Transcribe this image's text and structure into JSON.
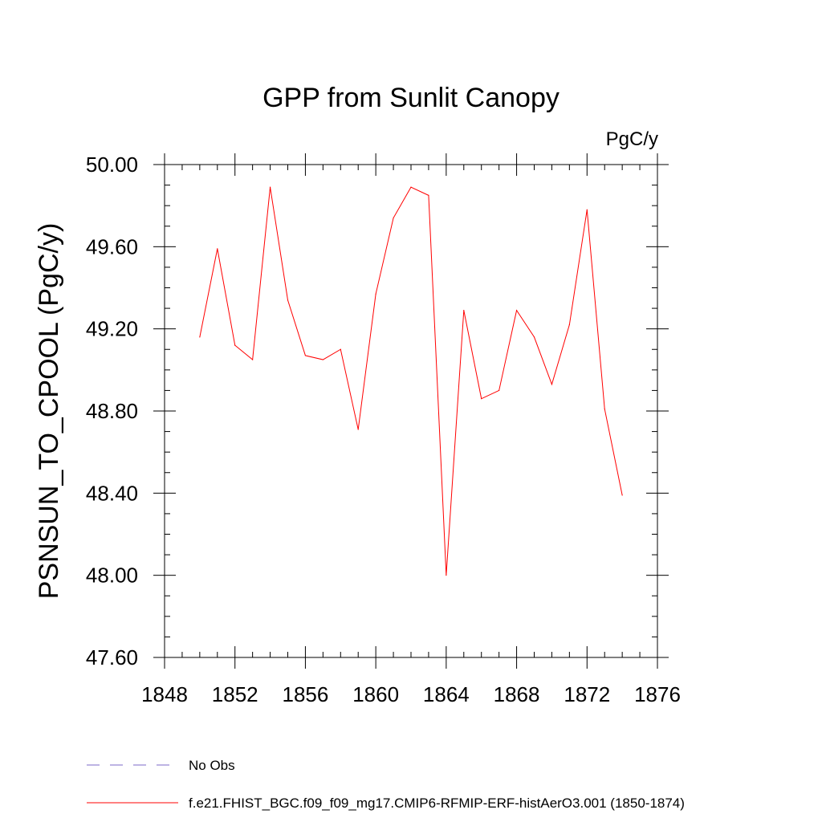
{
  "chart_data": {
    "type": "line",
    "title": "GPP from Sunlit Canopy",
    "units_label": "PgC/y",
    "ylabel": "PSNSUN_TO_CPOOL  (PgC/y)",
    "xlabel": "",
    "xlim": [
      1848,
      1876
    ],
    "ylim": [
      47.6,
      50.0
    ],
    "x_ticks": [
      1848,
      1852,
      1856,
      1860,
      1864,
      1868,
      1872,
      1876
    ],
    "x_tick_labels": [
      "1848",
      "1852",
      "1856",
      "1860",
      "1864",
      "1868",
      "1872",
      "1876"
    ],
    "y_ticks": [
      47.6,
      48.0,
      48.4,
      48.8,
      49.2,
      49.6,
      50.0
    ],
    "y_tick_labels": [
      "47.60",
      "48.00",
      "48.40",
      "48.80",
      "49.20",
      "49.60",
      "50.00"
    ],
    "grid": false,
    "legend_position": "bottom-left",
    "series": [
      {
        "name": "f.e21.FHIST_BGC.f09_f09_mg17.CMIP6-RFMIP-ERF-histAerO3.001 (1850-1874)",
        "color": "#ff0000",
        "style": "solid",
        "x": [
          1850,
          1851,
          1852,
          1853,
          1854,
          1855,
          1856,
          1857,
          1858,
          1859,
          1860,
          1861,
          1862,
          1863,
          1864,
          1865,
          1866,
          1867,
          1868,
          1869,
          1870,
          1871,
          1872,
          1873,
          1874
        ],
        "y": [
          49.16,
          49.59,
          49.12,
          49.05,
          49.89,
          49.34,
          49.07,
          49.05,
          49.1,
          48.71,
          49.37,
          49.74,
          49.89,
          49.85,
          48.0,
          49.29,
          48.86,
          48.9,
          49.29,
          49.16,
          48.93,
          49.22,
          49.78,
          48.81,
          48.39
        ]
      }
    ],
    "legend": [
      {
        "label": "No Obs",
        "color": "#7b68c8",
        "style": "dashed"
      },
      {
        "label": "f.e21.FHIST_BGC.f09_f09_mg17.CMIP6-RFMIP-ERF-histAerO3.001 (1850-1874)",
        "color": "#ff0000",
        "style": "solid"
      }
    ]
  }
}
